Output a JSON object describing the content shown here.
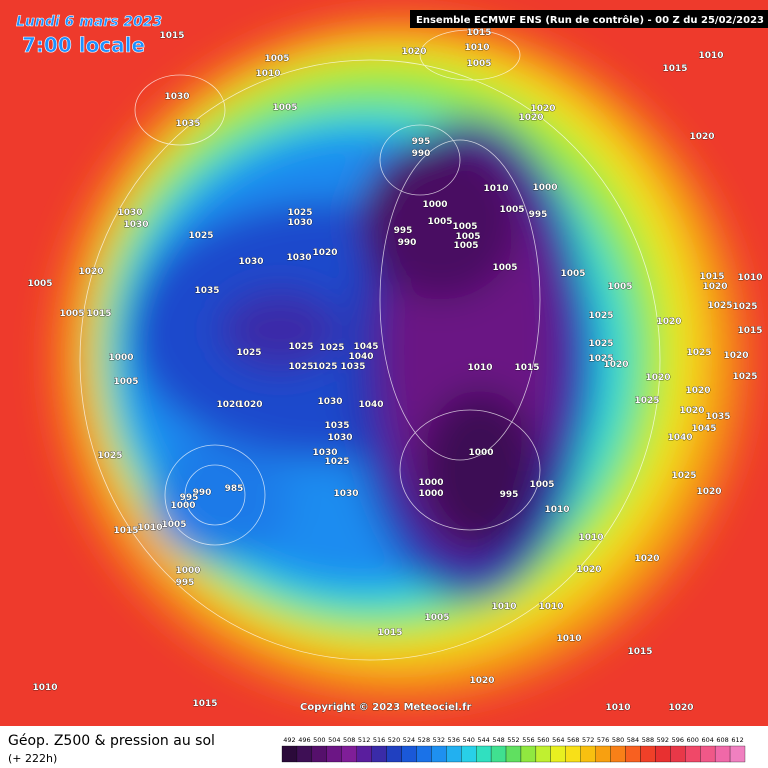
{
  "header": {
    "date": "Lundi 6 mars 2023",
    "time": "7:00 locale",
    "model": "Ensemble ECMWF ENS  (Run de contrôle)  -  00 Z du 25/02/2023"
  },
  "footer": {
    "title": "Géop. Z500 & pression au sol",
    "lead": "(+ 222h)",
    "copyright": "Copyright © 2023 Meteociel.fr"
  },
  "scale": {
    "values": [
      492,
      496,
      500,
      504,
      508,
      512,
      516,
      520,
      524,
      528,
      532,
      536,
      540,
      544,
      548,
      552,
      556,
      560,
      564,
      568,
      572,
      576,
      580,
      584,
      588,
      592,
      596,
      600,
      604,
      608,
      612
    ],
    "colors": [
      "#2b0a3a",
      "#3e0f55",
      "#55106b",
      "#6c1685",
      "#7f1e98",
      "#5a1e9e",
      "#3a2ba8",
      "#2040c0",
      "#1a58d8",
      "#1a72e8",
      "#1e90f0",
      "#22b0f0",
      "#28d0e8",
      "#30e0c0",
      "#40e090",
      "#60e060",
      "#90e840",
      "#c0f030",
      "#e8f020",
      "#f8e018",
      "#f8c010",
      "#f8a010",
      "#f88018",
      "#f86020",
      "#f04028",
      "#e83030",
      "#e83848",
      "#f04868",
      "#f05888",
      "#f068a8",
      "#f080c0"
    ]
  },
  "isobar_labels": [
    1015,
    1005,
    1010,
    1030,
    1035,
    1005,
    1020,
    1015,
    1010,
    1005,
    1015,
    1010,
    1020,
    1020,
    995,
    990,
    1020,
    1010,
    1000,
    995,
    1005,
    1000,
    995,
    990,
    1005,
    1005,
    1005,
    1005,
    1005,
    1005,
    1030,
    1030,
    1025,
    1030,
    1025,
    1020,
    1030,
    1030,
    1020,
    1005,
    1035,
    1005,
    1015,
    1000,
    1005,
    1025,
    1025,
    1025,
    1045,
    1040,
    1035,
    1025,
    1025,
    1010,
    1015,
    1020,
    1020,
    1030,
    1040,
    1035,
    1030,
    1025,
    1030,
    1025,
    1030,
    990,
    985,
    995,
    1000,
    1010,
    1005,
    1015,
    1000,
    995,
    1000,
    1000,
    1000,
    995,
    1005,
    1010,
    1010,
    1020,
    1020,
    1010,
    1005,
    1010,
    1015,
    1010,
    1020,
    1015,
    1010,
    1015,
    1010,
    1020,
    1025,
    1025,
    1020,
    1025,
    1020,
    1025,
    1020,
    1015,
    1025,
    1020,
    1020,
    1025,
    1020,
    1035,
    1045,
    1040,
    1025,
    1020,
    1010,
    1015,
    1020,
    1025,
    1025,
    1005
  ]
}
